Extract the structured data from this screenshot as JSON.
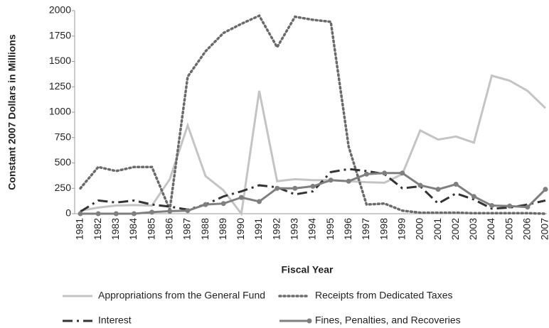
{
  "chart_data": {
    "type": "line",
    "x_label": "Fiscal Year",
    "y_label": "Constant 2007 Dollars in Millions",
    "categories": [
      "1981",
      "1982",
      "1983",
      "1984",
      "1985",
      "1986",
      "1987",
      "1988",
      "1989",
      "1990",
      "1991",
      "1992",
      "1993",
      "1994",
      "1995",
      "1996",
      "1997",
      "1998",
      "1999",
      "2000",
      "2001",
      "2002",
      "2003",
      "2004",
      "2005",
      "2006",
      "2007"
    ],
    "ylim": [
      0,
      2000
    ],
    "yticks": [
      0,
      250,
      500,
      750,
      1000,
      1250,
      1500,
      1750,
      2000
    ],
    "grid": false,
    "legend": "bottom",
    "series": [
      {
        "name": "Appropriations from the General Fund",
        "color": "#c4c4c4",
        "dash": "solid",
        "marker": false,
        "values": [
          30,
          60,
          80,
          85,
          80,
          340,
          870,
          370,
          230,
          0,
          1210,
          320,
          340,
          330,
          330,
          320,
          310,
          305,
          390,
          820,
          730,
          760,
          700,
          1360,
          1310,
          1210,
          1040
        ]
      },
      {
        "name": "Receipts from Dedicated Taxes",
        "color": "#6a6a6a",
        "dash": "dotted",
        "marker": false,
        "values": [
          250,
          460,
          420,
          460,
          460,
          40,
          1350,
          1600,
          1780,
          1870,
          1950,
          1640,
          1940,
          1910,
          1890,
          660,
          90,
          100,
          30,
          10,
          10,
          10,
          5,
          5,
          5,
          5,
          0
        ]
      },
      {
        "name": "Interest",
        "color": "#333333",
        "dash": "dashdot",
        "marker": false,
        "values": [
          20,
          130,
          110,
          130,
          90,
          70,
          40,
          90,
          170,
          220,
          280,
          260,
          190,
          220,
          410,
          440,
          420,
          390,
          250,
          270,
          100,
          200,
          140,
          50,
          60,
          90,
          130
        ]
      },
      {
        "name": "Fines, Penalties, and Recoveries",
        "color": "#7f7f7f",
        "dash": "solid",
        "marker": true,
        "values": [
          0,
          0,
          0,
          0,
          15,
          25,
          30,
          90,
          100,
          160,
          120,
          250,
          250,
          270,
          330,
          320,
          390,
          400,
          400,
          280,
          240,
          290,
          170,
          80,
          75,
          65,
          240
        ]
      }
    ]
  }
}
